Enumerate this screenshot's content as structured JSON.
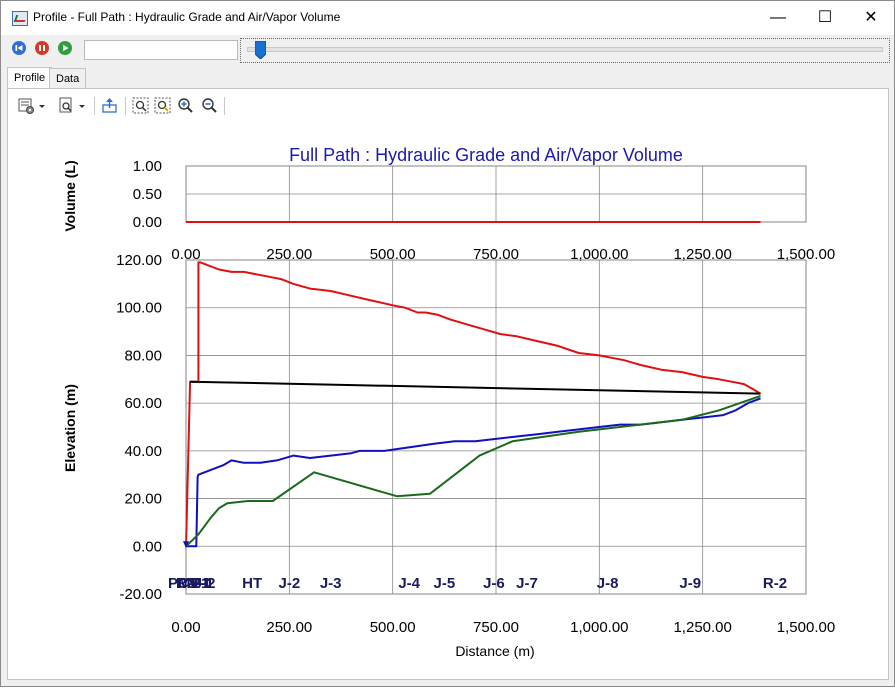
{
  "window": {
    "title": "Profile - Full Path : Hydraulic Grade and Air/Vapor Volume",
    "minimize": "—",
    "maximize": "☐",
    "close": "✕"
  },
  "tabs": [
    {
      "label": "Profile",
      "active": true
    },
    {
      "label": "Data",
      "active": false
    }
  ],
  "playback": {
    "time_value": "",
    "slider_fraction": 0.01
  },
  "toolbar_icons": [
    "chart-options-icon",
    "dropdown-arrow-icon",
    "print-preview-icon",
    "dropdown-arrow-icon",
    "export-icon",
    "zoom-extents-icon",
    "zoom-window-icon",
    "zoom-in-icon",
    "zoom-out-icon"
  ],
  "chart_data": [
    {
      "type": "line",
      "title": "Full Path : Hydraulic Grade and Air/Vapor Volume",
      "ylabel": "Volume (L)",
      "xlabel": "",
      "xlim": [
        0,
        1500
      ],
      "ylim": [
        0,
        1
      ],
      "x_ticks": [
        "0.00",
        "250.00",
        "500.00",
        "750.00",
        "1,000.00",
        "1,250.00",
        "1,500.00"
      ],
      "y_ticks": [
        "1.00",
        "0.50",
        "0.00"
      ],
      "grid": true,
      "series": [
        {
          "color": "#e01010",
          "x": [
            0,
            1390
          ],
          "y": [
            0,
            0
          ]
        }
      ]
    },
    {
      "type": "line",
      "title": "",
      "ylabel": "Elevation (m)",
      "xlabel": "Distance (m)",
      "xlim": [
        0,
        1500
      ],
      "ylim": [
        -20,
        120
      ],
      "x_ticks": [
        "0.00",
        "250.00",
        "500.00",
        "750.00",
        "1,000.00",
        "1,250.00",
        "1,500.00"
      ],
      "y_ticks": [
        "120.00",
        "100.00",
        "80.00",
        "60.00",
        "40.00",
        "20.00",
        "0.00",
        "-20.00"
      ],
      "grid": true,
      "node_labels": [
        {
          "label": "R-1",
          "x": 5
        },
        {
          "label": "PMP-1",
          "x": 12
        },
        {
          "label": "CV-1",
          "x": 20
        },
        {
          "label": "J-1",
          "x": 30
        },
        {
          "label": "J-2",
          "x": 45
        },
        {
          "label": "HT",
          "x": 160
        },
        {
          "label": "J-2",
          "x": 250
        },
        {
          "label": "J-3",
          "x": 350
        },
        {
          "label": "J-4",
          "x": 540
        },
        {
          "label": "J-5",
          "x": 625
        },
        {
          "label": "J-6",
          "x": 745
        },
        {
          "label": "J-7",
          "x": 825
        },
        {
          "label": "J-8",
          "x": 1020
        },
        {
          "label": "J-9",
          "x": 1220
        },
        {
          "label": "R-2",
          "x": 1425
        }
      ],
      "series": [
        {
          "color": "#e01010",
          "x": [
            0,
            10,
            30,
            30,
            35,
            50,
            80,
            110,
            140,
            170,
            200,
            230,
            260,
            300,
            350,
            400,
            450,
            500,
            530,
            560,
            580,
            610,
            640,
            680,
            720,
            760,
            800,
            850,
            900,
            950,
            1000,
            1030,
            1060,
            1100,
            1150,
            1200,
            1250,
            1290,
            1320,
            1350,
            1370,
            1390
          ],
          "y": [
            0,
            69,
            69,
            119,
            119,
            118,
            116,
            115,
            115,
            114,
            113,
            112,
            110,
            108,
            107,
            105,
            103,
            101,
            100,
            98,
            98,
            97,
            95,
            93,
            91,
            89,
            88,
            86,
            84,
            81,
            80,
            79,
            78,
            76,
            74,
            73,
            71,
            70,
            69,
            68,
            66,
            64
          ]
        },
        {
          "color": "#000000",
          "x": [
            10,
            1390
          ],
          "y": [
            69,
            64
          ]
        },
        {
          "color": "#1010c0",
          "x": [
            0,
            25,
            28,
            30,
            60,
            90,
            110,
            140,
            180,
            220,
            260,
            300,
            350,
            400,
            420,
            480,
            520,
            560,
            600,
            650,
            700,
            750,
            800,
            850,
            900,
            950,
            1000,
            1050,
            1100,
            1150,
            1200,
            1250,
            1300,
            1330,
            1360,
            1390
          ],
          "y": [
            0,
            0,
            29,
            30,
            32,
            34,
            36,
            35,
            35,
            36,
            38,
            37,
            38,
            39,
            40,
            40,
            41,
            42,
            43,
            44,
            44,
            45,
            46,
            47,
            48,
            49,
            50,
            51,
            51,
            52,
            53,
            54,
            55,
            57,
            60,
            62
          ]
        },
        {
          "color": "#1b6a1b",
          "x": [
            0,
            30,
            60,
            80,
            100,
            150,
            210,
            310,
            510,
            590,
            710,
            790,
            950,
            1200,
            1290,
            1340,
            1390
          ],
          "y": [
            0,
            5,
            12,
            16,
            18,
            19,
            19,
            31,
            21,
            22,
            38,
            44,
            48,
            53,
            57,
            60,
            63
          ]
        }
      ]
    }
  ]
}
